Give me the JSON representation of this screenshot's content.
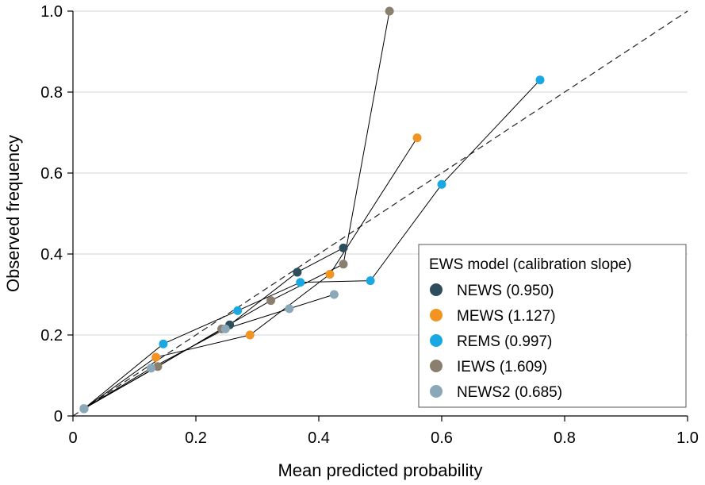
{
  "chart_data": {
    "type": "line",
    "xlabel": "Mean predicted probability",
    "ylabel": "Observed frequency",
    "xlim": [
      0,
      1.0
    ],
    "ylim": [
      0,
      1.0
    ],
    "x_ticks": [
      "0",
      "0.2",
      "0.4",
      "0.6",
      "0.8",
      "1.0"
    ],
    "y_ticks": [
      "0",
      "0.2",
      "0.4",
      "0.6",
      "0.8",
      "1.0"
    ],
    "grid": "horizontal",
    "reference_line": {
      "style": "dashed",
      "from": [
        0,
        0
      ],
      "to": [
        1,
        1
      ]
    },
    "legend": {
      "title": "EWS model (calibration slope)",
      "placement": "bottom-right"
    },
    "series": [
      {
        "name": "NEWS (0.950)",
        "color": "#2e4d5c",
        "points": [
          [
            0.018,
            0.018
          ],
          [
            0.255,
            0.225
          ],
          [
            0.365,
            0.355
          ],
          [
            0.44,
            0.415
          ]
        ]
      },
      {
        "name": "MEWS (1.127)",
        "color": "#f39322",
        "points": [
          [
            0.018,
            0.018
          ],
          [
            0.135,
            0.145
          ],
          [
            0.288,
            0.2
          ],
          [
            0.418,
            0.35
          ],
          [
            0.56,
            0.687
          ]
        ]
      },
      {
        "name": "REMS (0.997)",
        "color": "#1aa8e2",
        "points": [
          [
            0.018,
            0.018
          ],
          [
            0.147,
            0.178
          ],
          [
            0.268,
            0.26
          ],
          [
            0.37,
            0.33
          ],
          [
            0.484,
            0.334
          ],
          [
            0.6,
            0.572
          ],
          [
            0.76,
            0.83
          ]
        ]
      },
      {
        "name": "IEWS (1.609)",
        "color": "#8a7e6e",
        "points": [
          [
            0.018,
            0.018
          ],
          [
            0.138,
            0.122
          ],
          [
            0.242,
            0.215
          ],
          [
            0.322,
            0.285
          ],
          [
            0.44,
            0.375
          ],
          [
            0.515,
            1.0
          ]
        ]
      },
      {
        "name": "NEWS2 (0.685)",
        "color": "#8aa8b8",
        "points": [
          [
            0.018,
            0.018
          ],
          [
            0.127,
            0.118
          ],
          [
            0.248,
            0.215
          ],
          [
            0.352,
            0.265
          ],
          [
            0.425,
            0.3
          ]
        ]
      }
    ]
  }
}
